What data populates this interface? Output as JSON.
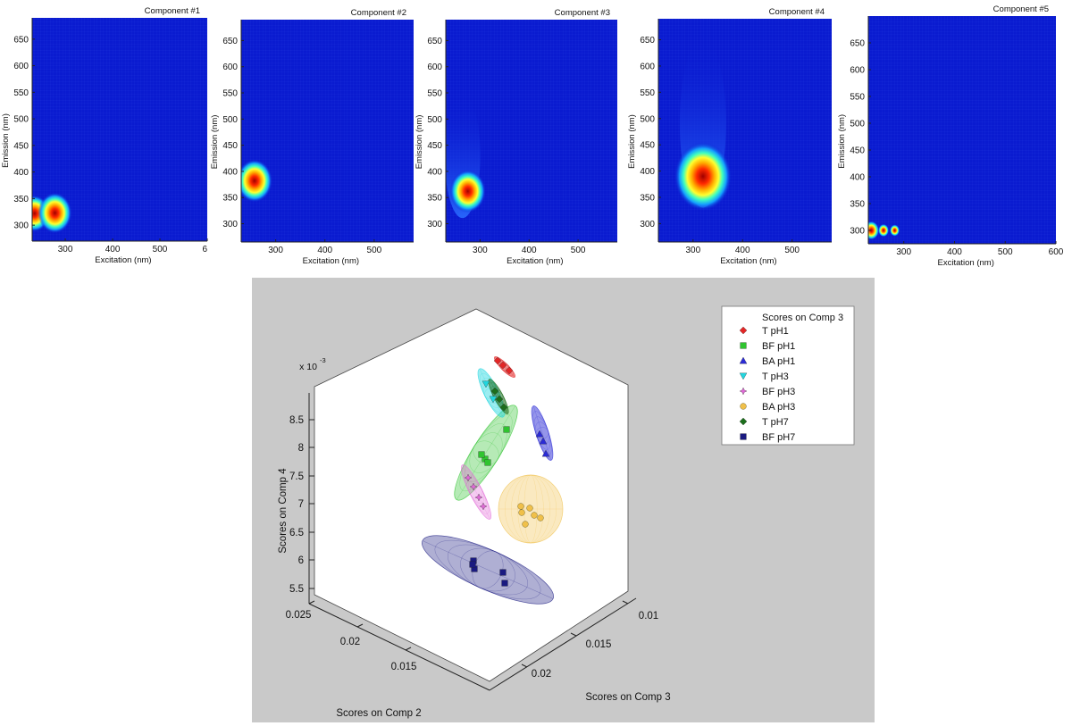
{
  "chart_data": [
    {
      "type": "heatmap",
      "title": "Component #1",
      "xlabel": "Excitation (nm)",
      "ylabel": "Emission (nm)",
      "xlim": [
        230,
        600
      ],
      "ylim": [
        270,
        690
      ],
      "xticks": [
        "300",
        "400",
        "500",
        "6"
      ],
      "yticks": [
        "300",
        "350",
        "400",
        "450",
        "500",
        "550",
        "600",
        "650"
      ],
      "peaks": [
        {
          "ex": 235,
          "em": 322,
          "level": 0.85
        },
        {
          "ex": 278,
          "em": 323,
          "level": 0.95
        }
      ]
    },
    {
      "type": "heatmap",
      "title": "Component #2",
      "xlabel": "Excitation (nm)",
      "ylabel": "Emission (nm)",
      "xlim": [
        230,
        580
      ],
      "ylim": [
        265,
        690
      ],
      "xticks": [
        "300",
        "400",
        "500"
      ],
      "yticks": [
        "300",
        "350",
        "400",
        "450",
        "500",
        "550",
        "600",
        "650"
      ],
      "peaks": [
        {
          "ex": 257,
          "em": 382,
          "level": 1.0
        }
      ]
    },
    {
      "type": "heatmap",
      "title": "Component #3",
      "xlabel": "Excitation (nm)",
      "ylabel": "Emission (nm)",
      "xlim": [
        230,
        580
      ],
      "ylim": [
        265,
        690
      ],
      "xticks": [
        "300",
        "400",
        "500"
      ],
      "yticks": [
        "300",
        "350",
        "400",
        "450",
        "500",
        "550",
        "600",
        "650"
      ],
      "peaks": [
        {
          "ex": 275,
          "em": 362,
          "level": 1.0
        }
      ]
    },
    {
      "type": "heatmap",
      "title": "Component #4",
      "xlabel": "Excitation (nm)",
      "ylabel": "Emission (nm)",
      "xlim": [
        230,
        580
      ],
      "ylim": [
        265,
        690
      ],
      "xticks": [
        "300",
        "400",
        "500"
      ],
      "yticks": [
        "300",
        "350",
        "400",
        "450",
        "500",
        "550",
        "600",
        "650"
      ],
      "peaks": [
        {
          "ex": 320,
          "em": 390,
          "level": 1.0
        }
      ]
    },
    {
      "type": "heatmap",
      "title": "Component #5",
      "xlabel": "Excitation (nm)",
      "ylabel": "Emission (nm)",
      "xlim": [
        230,
        600
      ],
      "ylim": [
        275,
        700
      ],
      "xticks": [
        "300",
        "400",
        "500",
        "600"
      ],
      "yticks": [
        "300",
        "350",
        "400",
        "450",
        "500",
        "550",
        "600",
        "650"
      ],
      "peaks": [
        {
          "ex": 236,
          "em": 300,
          "level": 0.8
        },
        {
          "ex": 260,
          "em": 300,
          "level": 0.55
        },
        {
          "ex": 282,
          "em": 300,
          "level": 0.5
        }
      ]
    },
    {
      "type": "scatter",
      "subtype": "3d",
      "xlabel": "Scores on Comp 3",
      "ylabel": "Scores on Comp 2",
      "zlabel": "Scores on Comp 4",
      "z_scale_label": "x 10",
      "z_scale_exp": "-3",
      "xticks": [
        "0.01",
        "0.015",
        "0.02"
      ],
      "yticks": [
        "0.025",
        "0.02",
        "0.015"
      ],
      "zticks": [
        "8.5",
        "8",
        "7.5",
        "7",
        "6.5",
        "6",
        "5.5"
      ],
      "legend_title": "Scores on Comp 3",
      "legend_position": "top-right",
      "series": [
        {
          "name": "T pH1",
          "color": "#e32626",
          "marker": "diamond"
        },
        {
          "name": "BF pH1",
          "color": "#2fc42f",
          "marker": "square"
        },
        {
          "name": "BA pH1",
          "color": "#2b2bd6",
          "marker": "triangle-up"
        },
        {
          "name": "T pH3",
          "color": "#22d6df",
          "marker": "triangle-down"
        },
        {
          "name": "BF pH3",
          "color": "#e26ad8",
          "marker": "star"
        },
        {
          "name": "BA pH3",
          "color": "#f0c04a",
          "marker": "circle"
        },
        {
          "name": "T pH7",
          "color": "#1c6e1c",
          "marker": "diamond"
        },
        {
          "name": "BF pH7",
          "color": "#1a1a80",
          "marker": "square"
        }
      ]
    }
  ]
}
